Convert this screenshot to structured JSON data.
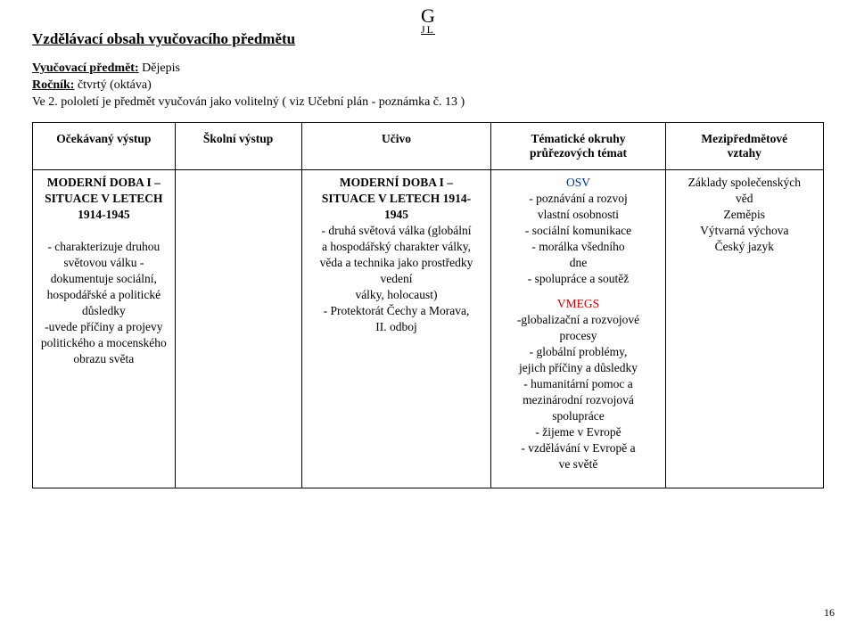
{
  "logo_top": "G",
  "logo_bottom": "JL",
  "page_title": "Vzdělávací obsah vyučovacího předmětu",
  "sub_subject_label": "Vyučovací předmět:",
  "sub_subject_value": " Dějepis",
  "sub_year_label": "Ročník:",
  "sub_year_value": " čtvrtý (oktáva)",
  "sub_note": "Ve 2. pololetí je předmět vyučován jako volitelný ( viz Učební plán - poznámka č. 13 )",
  "headers": {
    "c1": "Očekávaný výstup",
    "c2": "Školní výstup",
    "c3": "Učivo",
    "c4_line1": "Tématické okruhy",
    "c4_line2": "průřezových témat",
    "c5_line1": "Mezipředmětové",
    "c5_line2": "vztahy"
  },
  "row": {
    "c1": {
      "title1": "MODERNÍ DOBA I –",
      "title2": "SITUACE V LETECH",
      "title3": "1914-1945",
      "lines": [
        "- charakterizuje druhou",
        "světovou válku -",
        "dokumentuje sociální,",
        "hospodářské a politické",
        "důsledky",
        "-uvede příčiny a projevy",
        "politického a mocenského",
        "obrazu světa"
      ]
    },
    "c3": {
      "title1": "MODERNÍ DOBA I –",
      "title2": "SITUACE V LETECH 1914-",
      "title3": "1945",
      "lines": [
        "- druhá světová válka (globální",
        "a hospodářský charakter války,",
        "věda a technika jako prostředky",
        "vedení",
        "války, holocaust)",
        "- Protektorát Čechy a Morava,",
        "II. odboj"
      ]
    },
    "c4": {
      "osv_label": "OSV",
      "osv_lines": [
        "-    poznávání a rozvoj",
        "vlastní osobnosti",
        "-    sociální komunikace",
        "-    morálka všedního",
        "dne",
        "-    spolupráce a soutěž"
      ],
      "vmegs_label": "VMEGS",
      "vmegs_lines": [
        "-globalizační a rozvojové",
        "procesy",
        "- globální problémy,",
        "jejich příčiny a důsledky",
        "- humanitární pomoc a",
        "mezinárodní rozvojová",
        "spolupráce",
        "- žijeme v Evropě",
        "- vzdělávání v Evropě a",
        "ve světě"
      ]
    },
    "c5": {
      "lines": [
        "Základy společenských",
        "věd",
        "Zeměpis",
        "Výtvarná výchova",
        "Český jazyk"
      ]
    }
  },
  "page_number": "16"
}
